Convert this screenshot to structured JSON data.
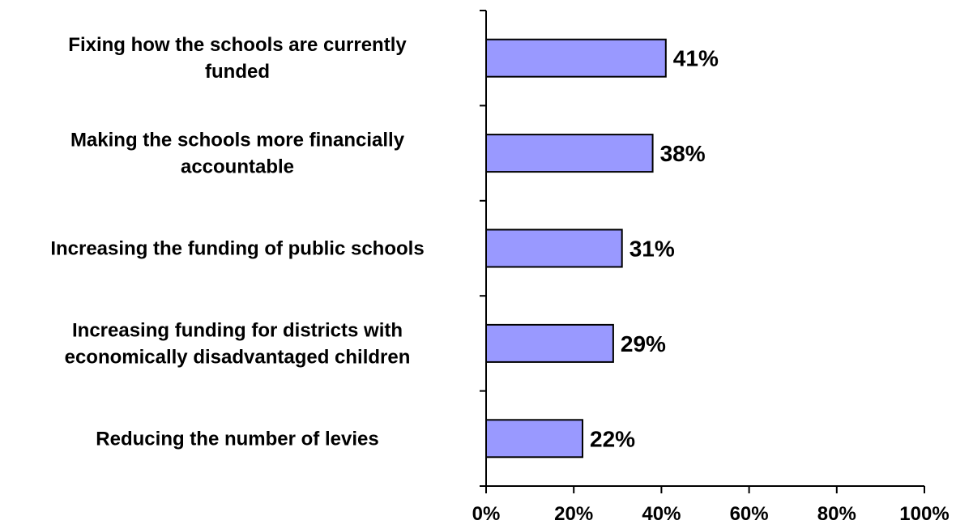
{
  "chart_data": {
    "type": "bar",
    "orientation": "horizontal",
    "title": "",
    "xlabel": "",
    "ylabel": "",
    "categories": [
      [
        "Fixing how the schools are currently",
        "funded"
      ],
      [
        "Making the schools more financially",
        "accountable"
      ],
      [
        "Increasing the funding of public schools"
      ],
      [
        "Increasing funding for districts with",
        "economically disadvantaged children"
      ],
      [
        "Reducing the number of levies"
      ]
    ],
    "values": [
      41,
      38,
      31,
      29,
      22
    ],
    "value_labels": [
      "41%",
      "38%",
      "31%",
      "29%",
      "22%"
    ],
    "xlim": [
      0,
      100
    ],
    "xticks": [
      0,
      20,
      40,
      60,
      80,
      100
    ],
    "xtick_labels": [
      "0%",
      "20%",
      "40%",
      "60%",
      "80%",
      "100%"
    ],
    "grid": false,
    "legend": "none",
    "colors": {
      "bar_fill": "#9999ff",
      "bar_stroke": "#000000",
      "axis": "#000000",
      "text": "#000000"
    }
  }
}
